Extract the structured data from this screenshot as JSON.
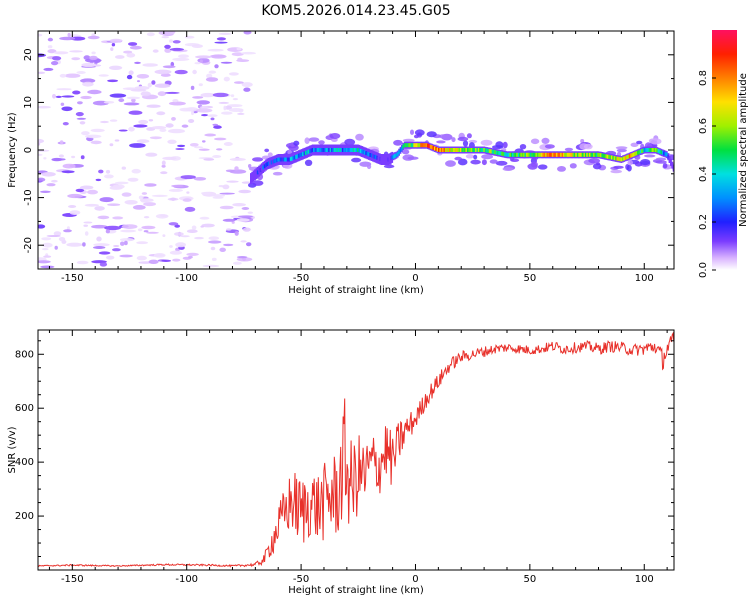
{
  "chart_data": [
    {
      "type": "heatmap",
      "title": "KOM5.2026.014.23.45.G05",
      "xlabel": "Height of straight line (km)",
      "ylabel": "Frequency (Hz)",
      "xlim": [
        -165,
        113
      ],
      "ylim": [
        -25,
        25
      ],
      "xticks": [
        -150,
        -100,
        -50,
        0,
        50,
        100
      ],
      "yticks": [
        -20,
        -10,
        0,
        10,
        20
      ],
      "colorbar": {
        "label": "Normalized spectral amplitude",
        "range": [
          0,
          1
        ],
        "ticks": [
          "0.0",
          "0.2",
          "0.4",
          "0.6",
          "0.8"
        ]
      },
      "ridge": {
        "x": [
          -72,
          -65,
          -60,
          -55,
          -50,
          -45,
          -40,
          -35,
          -30,
          -25,
          -20,
          -15,
          -12,
          -8,
          -5,
          0,
          5,
          10,
          20,
          30,
          40,
          50,
          60,
          70,
          80,
          90,
          95,
          100,
          105,
          110,
          113
        ],
        "y": [
          -6,
          -3,
          -2,
          -2,
          -1,
          0,
          0,
          0,
          0,
          0,
          -1,
          -2,
          -2,
          -1,
          1,
          1,
          1,
          0,
          0,
          0,
          -1,
          -1,
          -1,
          -1,
          -1,
          -2,
          -1,
          0,
          0,
          -1,
          -4
        ],
        "amplitude": [
          0.1,
          0.2,
          0.25,
          0.3,
          0.35,
          0.3,
          0.3,
          0.35,
          0.3,
          0.35,
          0.2,
          0.15,
          0.15,
          0.3,
          0.45,
          0.6,
          0.85,
          0.8,
          0.6,
          0.55,
          0.45,
          0.55,
          0.8,
          0.6,
          0.55,
          0.65,
          0.75,
          0.4,
          0.6,
          0.2,
          0.1
        ]
      }
    },
    {
      "type": "line",
      "xlabel": "Height of straight line (km)",
      "ylabel": "SNR (v/v)",
      "xlim": [
        -165,
        113
      ],
      "ylim": [
        0,
        890
      ],
      "xticks": [
        -150,
        -100,
        -50,
        0,
        50,
        100
      ],
      "yticks": [
        200,
        400,
        600,
        800
      ],
      "series": [
        {
          "name": "SNR",
          "color": "#e8302a",
          "x": [
            -165,
            -150,
            -130,
            -110,
            -90,
            -80,
            -70,
            -66,
            -62,
            -58,
            -54,
            -50,
            -46,
            -42,
            -38,
            -34,
            -31,
            -28,
            -25,
            -22,
            -19,
            -16,
            -13,
            -10,
            -7,
            -4,
            0,
            5,
            10,
            15,
            20,
            25,
            30,
            35,
            40,
            45,
            50,
            55,
            60,
            65,
            70,
            75,
            80,
            85,
            90,
            95,
            100,
            105,
            108,
            110,
            113
          ],
          "y": [
            15,
            18,
            15,
            20,
            18,
            15,
            20,
            40,
            120,
            200,
            260,
            210,
            250,
            230,
            270,
            280,
            420,
            300,
            360,
            350,
            400,
            380,
            450,
            400,
            480,
            520,
            560,
            640,
            700,
            760,
            790,
            800,
            810,
            820,
            825,
            820,
            815,
            820,
            830,
            820,
            825,
            830,
            820,
            830,
            825,
            815,
            820,
            830,
            780,
            820,
            850
          ],
          "noise": [
            2,
            3,
            2,
            3,
            3,
            3,
            6,
            20,
            60,
            90,
            120,
            140,
            130,
            140,
            150,
            170,
            220,
            180,
            150,
            130,
            120,
            110,
            120,
            100,
            80,
            60,
            40,
            35,
            30,
            25,
            22,
            20,
            20,
            18,
            18,
            18,
            18,
            18,
            20,
            20,
            20,
            20,
            22,
            22,
            22,
            22,
            25,
            30,
            40,
            35,
            35
          ]
        }
      ]
    }
  ]
}
